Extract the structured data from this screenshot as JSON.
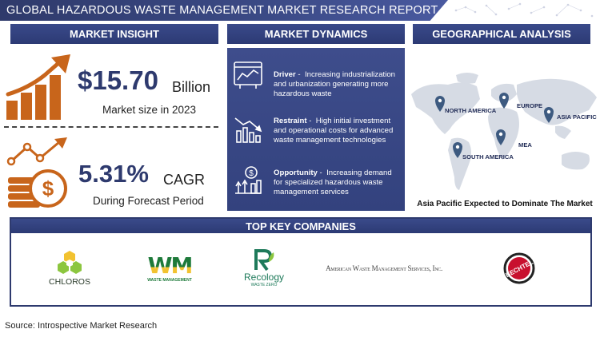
{
  "header": {
    "title": "GLOBAL HAZARDOUS WASTE MANAGEMENT MARKET RESEARCH REPORT"
  },
  "sections": {
    "insight": "MARKET INSIGHT",
    "dynamics": "MARKET DYNAMICS",
    "geo": "GEOGRAPHICAL ANALYSIS",
    "companies": "TOP KEY COMPANIES"
  },
  "insight": {
    "size_value": "$15.70",
    "size_unit": "Billion",
    "size_caption": "Market size in 2023",
    "cagr_value": "5.31%",
    "cagr_unit": "CAGR",
    "cagr_caption": "During Forecast Period"
  },
  "dynamics": {
    "driver": {
      "label": "Driver",
      "text": "Increasing industrialization and urbanization generating more hazardous waste"
    },
    "restraint": {
      "label": "Restraint",
      "text": "High initial investment and operational costs for advanced waste management technologies"
    },
    "opportunity": {
      "label": "Opportunity",
      "text": "Increasing demand for specialized hazardous waste management services"
    }
  },
  "geo": {
    "regions": [
      "NORTH AMERICA",
      "EUROPE",
      "ASIA PACIFIC",
      "MEA",
      "SOUTH AMERICA"
    ],
    "caption": "Asia Pacific Expected to Dominate The Market"
  },
  "companies": {
    "chloros": "CHLOROS",
    "wm": "WM",
    "wm_sub": "WASTE MANAGEMENT",
    "recology": "Recology",
    "recology_sub": "WASTE ZERO",
    "amws": "American Waste Management Services, Inc.",
    "bechtel": "BECHTEL"
  },
  "colors": {
    "navy": "#2e3a6e",
    "orange": "#c8651b",
    "map_gray": "#d6dbe4"
  },
  "footer": {
    "source": "Source: Introspective Market Research"
  }
}
